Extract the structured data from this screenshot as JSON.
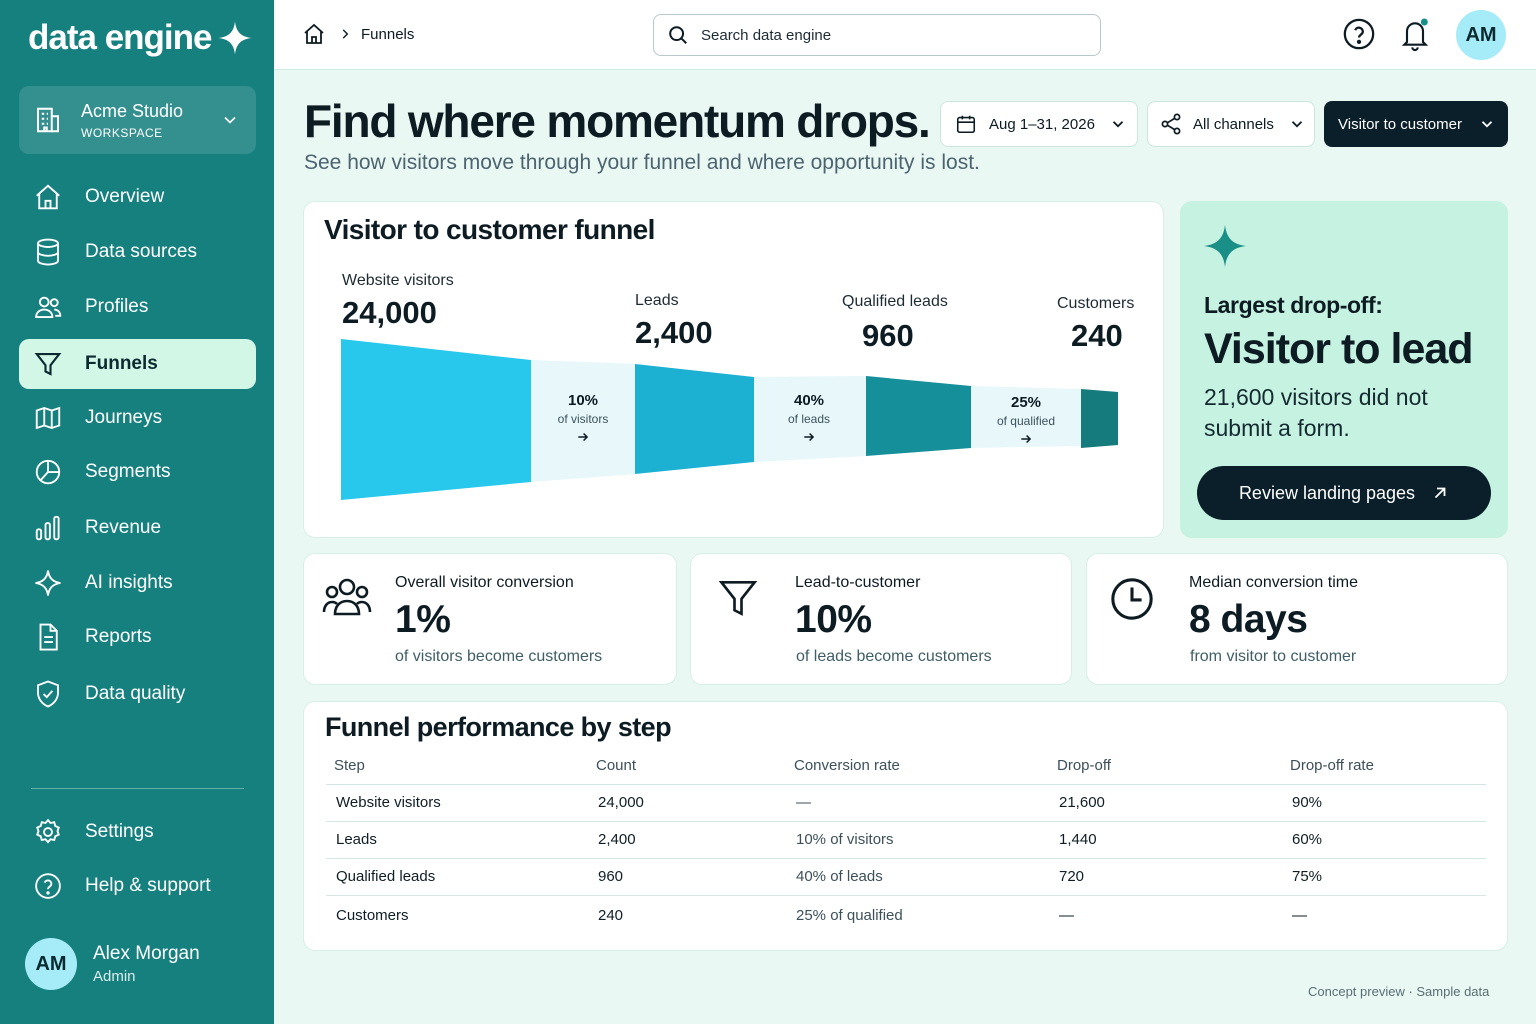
{
  "colors": {
    "sidebar": "#16807f",
    "active_nav": "#d3f7e7",
    "accent_dark": "#0b1f2a",
    "funnel_1": "#27c8ec",
    "funnel_2": "#1cb0d2",
    "funnel_3": "#158f9a",
    "funnel_4": "#157b7d",
    "insight_bg": "#c6f2e1"
  },
  "brand": {
    "name": "data engine",
    "icon": "sparkle-icon"
  },
  "workspace": {
    "name": "Acme Studio",
    "label": "WORKSPACE",
    "icon": "building-icon"
  },
  "nav": [
    {
      "label": "Overview",
      "icon": "home-icon"
    },
    {
      "label": "Data sources",
      "icon": "database-icon"
    },
    {
      "label": "Profiles",
      "icon": "users-icon"
    },
    {
      "label": "Funnels",
      "icon": "funnel-icon",
      "active": true
    },
    {
      "label": "Journeys",
      "icon": "map-icon"
    },
    {
      "label": "Segments",
      "icon": "pie-icon"
    },
    {
      "label": "Revenue",
      "icon": "bar-chart-icon"
    },
    {
      "label": "AI insights",
      "icon": "sparkle-icon"
    },
    {
      "label": "Reports",
      "icon": "document-icon"
    },
    {
      "label": "Data quality",
      "icon": "shield-check-icon"
    }
  ],
  "nav_bottom": [
    {
      "label": "Settings",
      "icon": "gear-icon"
    },
    {
      "label": "Help & support",
      "icon": "help-icon"
    }
  ],
  "user": {
    "initials": "AM",
    "name": "Alex Morgan",
    "role": "Admin"
  },
  "topbar": {
    "breadcrumb": "Funnels",
    "search_placeholder": "Search data engine",
    "avatar_initials": "AM"
  },
  "header": {
    "title": "Find where momentum drops.",
    "subtitle": "See how visitors move through your funnel and where opportunity is lost.",
    "filters": {
      "date": "Aug 1–31, 2026",
      "channels": "All channels",
      "funnel": "Visitor to customer"
    }
  },
  "funnel": {
    "title": "Visitor to customer funnel",
    "stages": [
      {
        "name": "Website visitors",
        "value": "24,000"
      },
      {
        "name": "Leads",
        "value": "2,400"
      },
      {
        "name": "Qualified leads",
        "value": "960"
      },
      {
        "name": "Customers",
        "value": "240"
      }
    ],
    "conversions": [
      {
        "pct": "10%",
        "sub": "of visitors"
      },
      {
        "pct": "40%",
        "sub": "of leads"
      },
      {
        "pct": "25%",
        "sub": "of qualified"
      }
    ]
  },
  "insight": {
    "kicker": "Largest drop-off:",
    "headline": "Visitor to lead",
    "body": "21,600 visitors did not submit a form.",
    "button": "Review landing pages"
  },
  "kpis": [
    {
      "label": "Overall visitor conversion",
      "value": "1%",
      "sub": "of visitors become customers",
      "icon": "users-group-icon"
    },
    {
      "label": "Lead-to-customer",
      "value": "10%",
      "sub": "of leads become customers",
      "icon": "funnel-icon"
    },
    {
      "label": "Median conversion time",
      "value": "8 days",
      "sub": "from visitor to customer",
      "icon": "clock-icon"
    }
  ],
  "table": {
    "title": "Funnel performance by step",
    "columns": [
      "Step",
      "Count",
      "Conversion rate",
      "Drop-off",
      "Drop-off rate"
    ],
    "rows": [
      [
        "Website visitors",
        "24,000",
        "—",
        "21,600",
        "90%"
      ],
      [
        "Leads",
        "2,400",
        "10% of visitors",
        "1,440",
        "60%"
      ],
      [
        "Qualified leads",
        "960",
        "40% of leads",
        "720",
        "75%"
      ],
      [
        "Customers",
        "240",
        "25% of qualified",
        "—",
        "—"
      ]
    ]
  },
  "footer_note": "Concept preview · Sample data"
}
